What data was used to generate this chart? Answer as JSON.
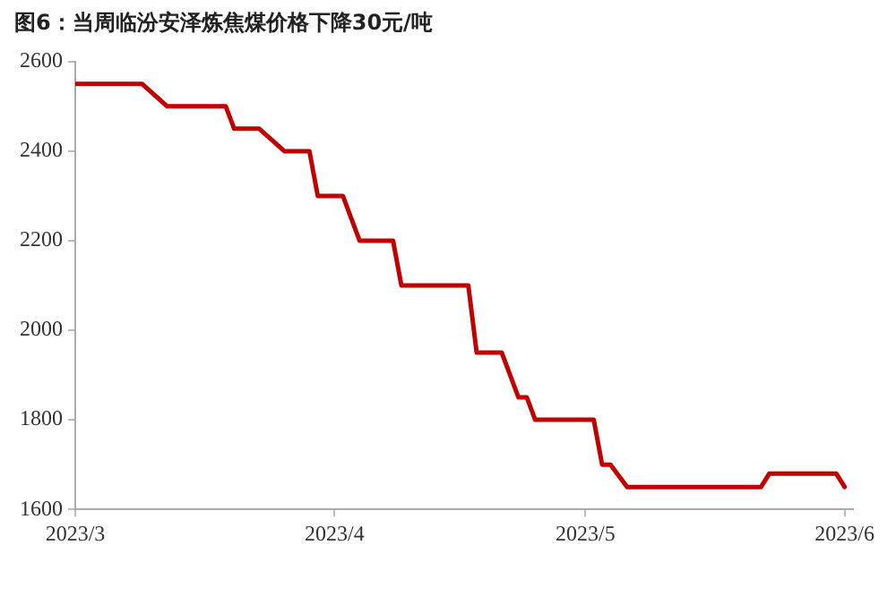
{
  "chart_data": {
    "type": "line",
    "title": "图6：当周临汾安泽炼焦煤价格下降30元/吨",
    "x": [
      "2023-03-01",
      "2023-03-09",
      "2023-03-12",
      "2023-03-19",
      "2023-03-20",
      "2023-03-23",
      "2023-03-26",
      "2023-03-29",
      "2023-03-30",
      "2023-04-02",
      "2023-04-04",
      "2023-04-08",
      "2023-04-09",
      "2023-04-17",
      "2023-04-18",
      "2023-04-21",
      "2023-04-23",
      "2023-04-24",
      "2023-04-25",
      "2023-05-02",
      "2023-05-03",
      "2023-05-04",
      "2023-05-06",
      "2023-05-22",
      "2023-05-23",
      "2023-05-31",
      "2023-06-01"
    ],
    "series": [
      {
        "color": "#c00000",
        "values": [
          2550,
          2550,
          2500,
          2500,
          2450,
          2450,
          2400,
          2400,
          2300,
          2300,
          2200,
          2200,
          2100,
          2100,
          1950,
          1950,
          1850,
          1850,
          1800,
          1800,
          1700,
          1700,
          1650,
          1650,
          1680,
          1680,
          1650
        ]
      }
    ],
    "xlim": [
      "2023-03-01",
      "2023-06-02"
    ],
    "xticks": [
      {
        "value": "2023-03-01",
        "label": "2023/3"
      },
      {
        "value": "2023-04-01",
        "label": "2023/4"
      },
      {
        "value": "2023-05-01",
        "label": "2023/5"
      },
      {
        "value": "2023-06-01",
        "label": "2023/6"
      }
    ],
    "ylim": [
      1600,
      2600
    ],
    "yticks": [
      1600,
      1800,
      2000,
      2200,
      2400,
      2600
    ],
    "grid": false,
    "legend": false,
    "marker": "none",
    "line_style": "solid"
  }
}
